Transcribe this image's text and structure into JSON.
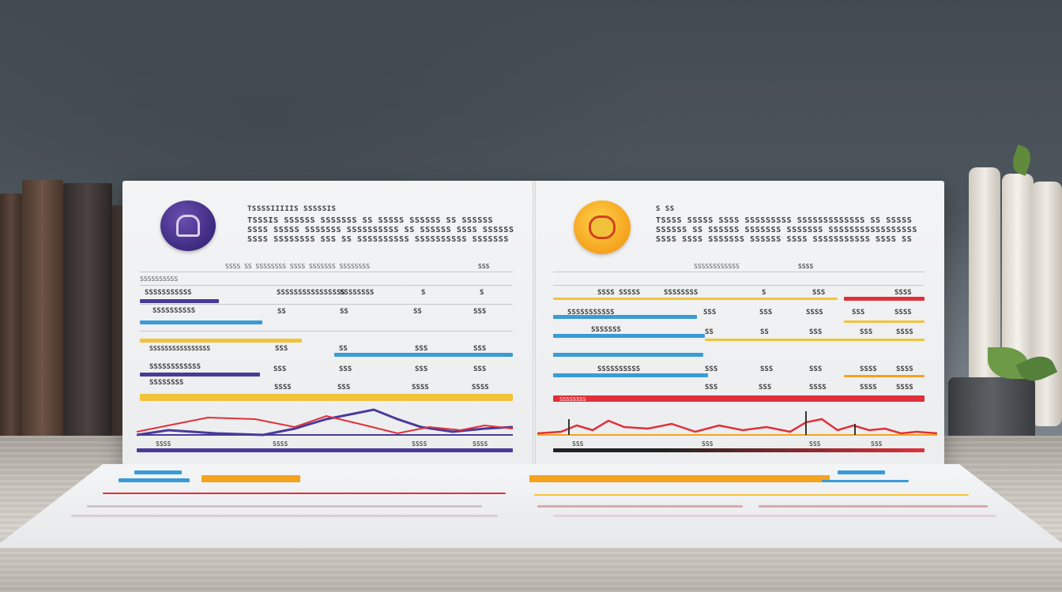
{
  "scene": {
    "colors": {
      "purple": "#4a3a9a",
      "blue": "#3a9bd6",
      "yellow": "#f2c33a",
      "red": "#e0303a",
      "orange": "#f5a21e"
    },
    "left_panel": {
      "logo": "purple-emblem-logo",
      "header_line_1": "TSSSSIIIIIS SSSSSIS",
      "header_line_2": "TSSSIS SSSSSS SSSSSSS SS SSSSS SSSSSS SS SSSSSS",
      "header_line_3": "SSSS SSSSS SSSSSSS SSSSSSSSSS SS SSSSSS SSSS SSSSSS",
      "header_line_4": "SSSS SSSSSSSS SSS SS SSSSSSSSSS SSSSSSSSSS SSSSSSS",
      "col_header": "SSSS SS SSSSSSSS SSSS SSSSSSS SSSSSSSS",
      "col_header_right": "SSS",
      "rows": [
        {
          "label": "SSSSSSSSSSS",
          "c1": "SS",
          "c2": "SSSSSSSSSSSSSSSS",
          "c3": "SSSSSSSS",
          "c4": "S",
          "c5": "S"
        },
        {
          "label": "SSSSSSSSSS",
          "c1": "SS",
          "c2": "SS",
          "c3": "SS",
          "c4": "SSS",
          "c5": "SSS"
        },
        {
          "label": "SSSSSSSSSSSSSSSS",
          "c1": "SSS",
          "c2": "SS",
          "c3": "SSS",
          "c4": "SS",
          "c5": "SSS"
        },
        {
          "label": "SSSSSSSSSSSS",
          "c1": "SSS",
          "c2": "SSS",
          "c3": "SSS",
          "c4": "SSS",
          "c5": "SSS"
        },
        {
          "label": "SSSSSSSS",
          "c1": "SSSS",
          "c2": "SSS",
          "c3": "SSSS",
          "c4": "SSSS",
          "c5": "SSSS"
        }
      ],
      "footer_labels": [
        "SSSS",
        "SSSS",
        "SSSS",
        "SSSS"
      ]
    },
    "right_panel": {
      "logo": "orange-emblem-logo",
      "header_line_1": "S SS",
      "header_line_2": "TSSSS SSSSS SSSS SSSSSSSSS SSSSSSSSSSSSS SS SSSSS",
      "header_line_3": "SSSSSS SS SSSSSS SSSSSSS SSSSSSS SSSSSSSSSSSSSSSSS",
      "header_line_4": "SSSS SSSS SSSSSSS SSSSSS SSSS SSSSSSSSSSS SSSS SS",
      "col_header": "SSSSSSSSSSSS",
      "col_header_right": "SSSS",
      "rows": [
        {
          "label": "SSSS SSSSS",
          "c1": "SS",
          "c2": "SSSSSSSS",
          "c3": "S",
          "c4": "SSS",
          "c5": "SSSS"
        },
        {
          "label": "SSSSSSSSSSS",
          "c1": "SSS",
          "c2": "SSS",
          "c3": "SSSS",
          "c4": "SSS",
          "c5": "SSSS"
        },
        {
          "label": "SSSSSSS",
          "c1": "SS",
          "c2": "SS",
          "c3": "SSS",
          "c4": "SSS",
          "c5": "SSSS"
        },
        {
          "label": "SSSSSSSSSS",
          "c1": "SSS",
          "c2": "SSS",
          "c3": "SSS",
          "c4": "SSSS",
          "c5": "SSSS"
        },
        {
          "label": "SSSSSSSS",
          "c1": "SSS",
          "c2": "SSS",
          "c3": "SSSS",
          "c4": "SSSS",
          "c5": "SSSS"
        }
      ],
      "footer_labels": [
        "SSS",
        "SSS",
        "SSS",
        "SSS"
      ]
    }
  }
}
